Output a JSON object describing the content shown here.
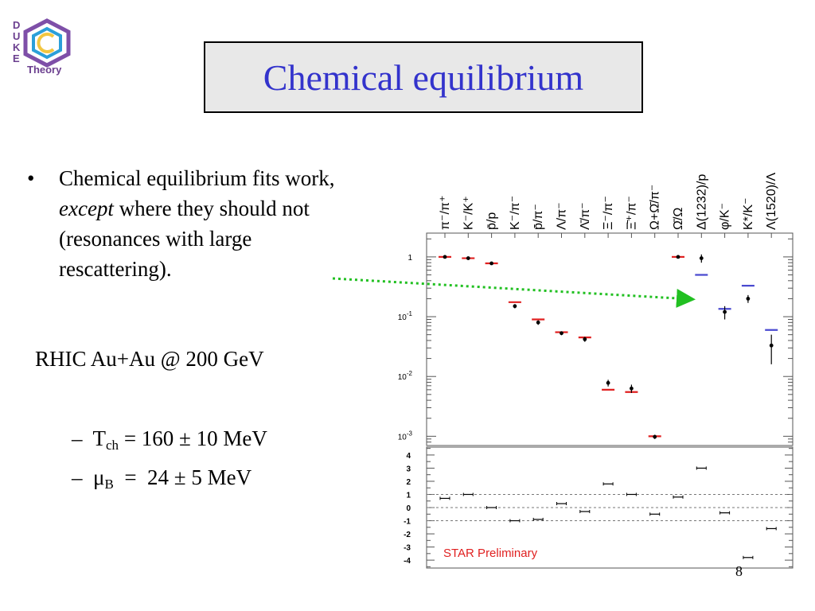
{
  "slide": {
    "title": "Chemical equilibrium",
    "page_number": "8",
    "logo_letters": [
      "D",
      "U",
      "K",
      "E"
    ],
    "logo_text": "Theory",
    "bullet": {
      "text_1": "Chemical equilibrium fits work, ",
      "emphasis": "except",
      "text_2": " where they should not (resonances with large rescattering)."
    },
    "rhic_label": "RHIC Au+Au @ 200 GeV",
    "params": [
      {
        "dash": "–",
        "symbol": "T",
        "sub": "ch",
        "text": " = 160 ± 10 MeV"
      },
      {
        "dash": "–",
        "symbol": "μ",
        "sub": "B",
        "text": "  =  24 ± 5 MeV"
      }
    ],
    "colors": {
      "title": "#3333cc",
      "model": "#e02020",
      "resonance_model": "#4a4ad0",
      "arrow": "#22c022",
      "star": "#e02020"
    }
  },
  "chart_data": [
    {
      "type": "scatter",
      "title": "",
      "log_y": true,
      "ylim": [
        0.0007,
        2.5
      ],
      "ytick_labels": [
        "1",
        "10-1",
        "10-2",
        "10-3"
      ],
      "yticks": [
        1,
        0.1,
        0.01,
        0.001
      ],
      "categories": [
        "π⁻/π⁺",
        "K⁻/K⁺",
        "p̄/p",
        "K⁻/π⁻",
        "p̄/π⁻",
        "Λ/π⁻",
        "Λ̄/π⁻",
        "Ξ⁻/π⁻",
        "Ξ̄⁺/π⁻",
        "Ω+Ω̄/π⁻",
        "Ω̄/Ω",
        "Δ(1232)/p",
        "φ/K⁻",
        "K*/K⁻",
        "Λ(1520)/Λ"
      ],
      "series": [
        {
          "role": "data",
          "values": [
            1.0,
            0.95,
            0.78,
            0.15,
            0.08,
            0.053,
            0.042,
            0.0078,
            0.0063,
            0.00098,
            1.0,
            0.95,
            0.12,
            0.2,
            0.033
          ],
          "err_lo": [
            0.02,
            0.02,
            0.02,
            0.012,
            0.007,
            0.004,
            0.004,
            0.001,
            0.001,
            8e-05,
            0.04,
            0.15,
            0.03,
            0.03,
            0.017
          ],
          "err_hi": [
            0.02,
            0.02,
            0.02,
            0.012,
            0.007,
            0.004,
            0.004,
            0.001,
            0.001,
            8e-05,
            0.04,
            0.15,
            0.03,
            0.03,
            0.017
          ]
        },
        {
          "role": "model",
          "values": [
            1.0,
            0.95,
            0.78,
            0.175,
            0.09,
            0.055,
            0.045,
            0.006,
            0.0055,
            0.001,
            1.0,
            0.5,
            0.135,
            0.33,
            0.06
          ]
        }
      ],
      "resonance_categories": [
        11,
        12,
        13,
        14
      ]
    },
    {
      "type": "scatter",
      "title": "",
      "ylim": [
        -4.6,
        4.6
      ],
      "ytick_labels": [
        "4",
        "3",
        "2",
        "1",
        "0",
        "-1",
        "-2",
        "-3",
        "-4"
      ],
      "yticks": [
        4,
        3,
        2,
        1,
        0,
        -1,
        -2,
        -3,
        -4
      ],
      "reference_lines": [
        1,
        0,
        -1
      ],
      "series": [
        {
          "role": "deviation",
          "values": [
            0.7,
            1.0,
            0.0,
            -1.0,
            -0.9,
            0.3,
            -0.3,
            1.8,
            1.0,
            -0.5,
            0.8,
            3.0,
            -0.4,
            -3.8,
            -1.6
          ]
        }
      ],
      "annotation": "STAR Preliminary"
    }
  ]
}
